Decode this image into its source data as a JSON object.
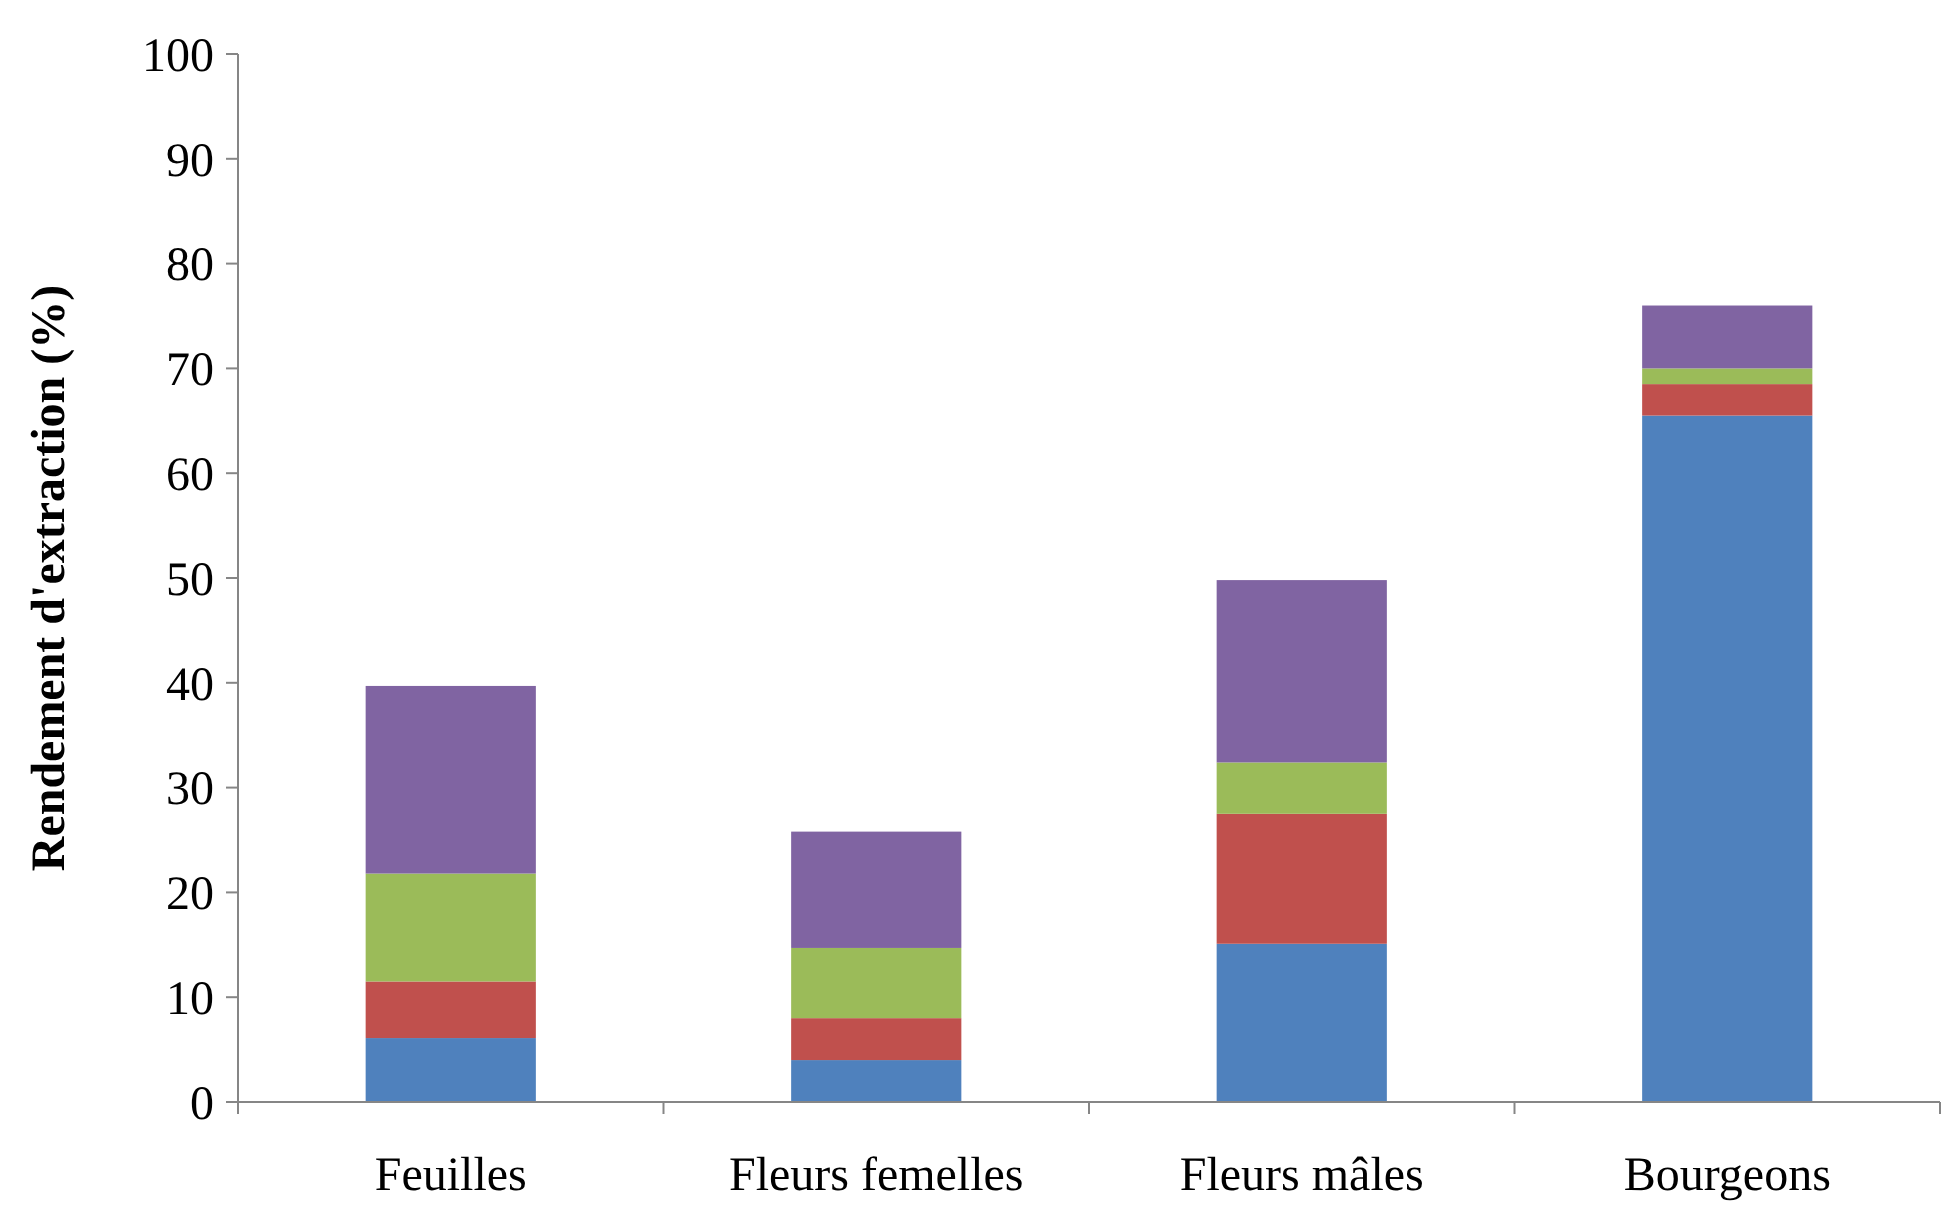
{
  "chart_data": {
    "type": "bar",
    "stacked": true,
    "ylabel": "Rendement d'extraction (%)",
    "categories": [
      "Feuilles",
      "Fleurs femelles",
      "Fleurs mâles",
      "Bourgeons"
    ],
    "series": [
      {
        "color": "#4f81bd",
        "values": [
          6.1,
          4.0,
          15.1,
          65.5
        ]
      },
      {
        "color": "#c0504d",
        "values": [
          5.4,
          4.0,
          12.4,
          3.0
        ]
      },
      {
        "color": "#9bbb59",
        "values": [
          10.3,
          6.7,
          4.9,
          1.5
        ]
      },
      {
        "color": "#8064a2",
        "values": [
          17.9,
          11.1,
          17.4,
          6.0
        ]
      }
    ],
    "ylim": [
      0,
      100
    ],
    "yticks": [
      0,
      10,
      20,
      30,
      40,
      50,
      60,
      70,
      80,
      90,
      100
    ],
    "grid": false
  }
}
